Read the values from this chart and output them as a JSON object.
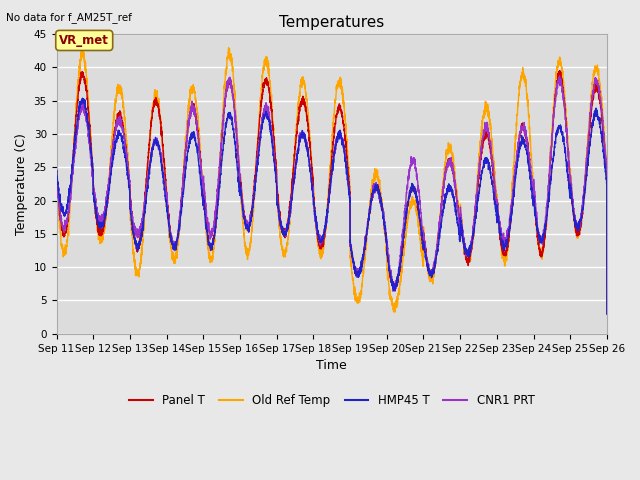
{
  "title": "Temperatures",
  "xlabel": "Time",
  "ylabel": "Temperature (C)",
  "note": "No data for f_AM25T_ref",
  "vr_met_label": "VR_met",
  "ylim": [
    0,
    45
  ],
  "yticks": [
    0,
    5,
    10,
    15,
    20,
    25,
    30,
    35,
    40,
    45
  ],
  "xtick_labels": [
    "Sep 11",
    "Sep 12",
    "Sep 13",
    "Sep 14",
    "Sep 15",
    "Sep 16",
    "Sep 17",
    "Sep 18",
    "Sep 19",
    "Sep 20",
    "Sep 21",
    "Sep 22",
    "Sep 23",
    "Sep 24",
    "Sep 25",
    "Sep 26"
  ],
  "series": {
    "Panel T": {
      "color": "#CC0000",
      "lw": 1.0
    },
    "Old Ref Temp": {
      "color": "#FFA500",
      "lw": 1.0
    },
    "HMP45 T": {
      "color": "#2222CC",
      "lw": 1.0
    },
    "CNR1 PRT": {
      "color": "#9933CC",
      "lw": 1.0
    }
  },
  "fig_facecolor": "#E8E8E8",
  "ax_facecolor": "#DCDCDC",
  "grid_color": "#FFFFFF",
  "title_fontsize": 11,
  "label_fontsize": 9,
  "tick_fontsize": 7.5
}
